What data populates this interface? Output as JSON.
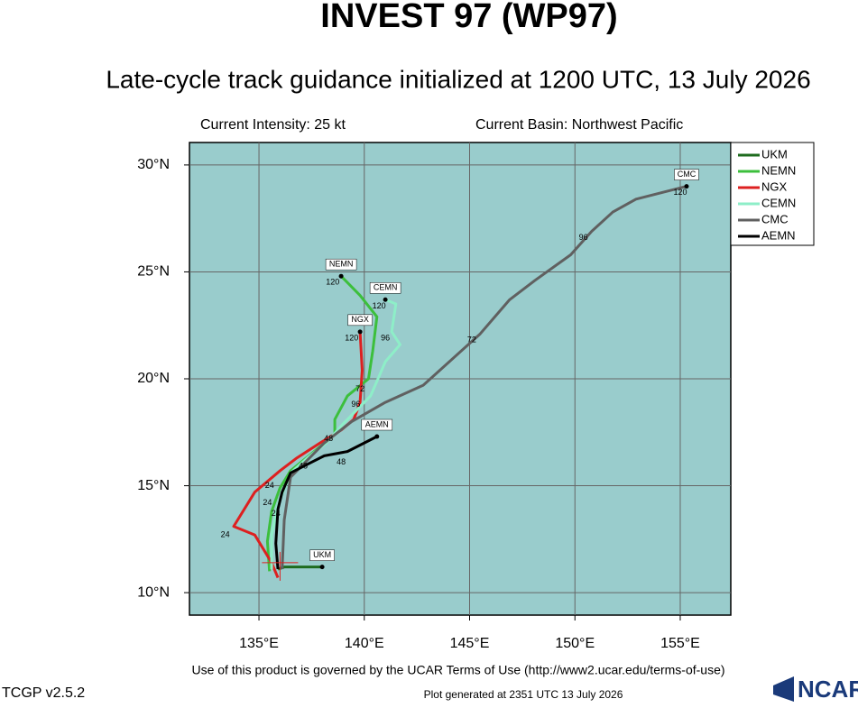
{
  "chart_data": {
    "type": "line",
    "title": "INVEST 97 (WP97)",
    "subtitle": "Late-cycle track guidance initialized at 1200 UTC, 13 July 2026",
    "intensity": "Current Intensity: 25 kt",
    "basin": "Current Basin: Northwest Pacific",
    "xlim": [
      131.7,
      157.4
    ],
    "ylim": [
      8.95,
      31.05
    ],
    "xticks": [
      {
        "value": 135,
        "label": "135°E"
      },
      {
        "value": 140,
        "label": "140°E"
      },
      {
        "value": 145,
        "label": "145°E"
      },
      {
        "value": 150,
        "label": "150°E"
      },
      {
        "value": 155,
        "label": "155°E"
      }
    ],
    "yticks": [
      {
        "value": 10,
        "label": "10°N"
      },
      {
        "value": 15,
        "label": "15°N"
      },
      {
        "value": 20,
        "label": "20°N"
      },
      {
        "value": 25,
        "label": "25°N"
      },
      {
        "value": 30,
        "label": "30°N"
      }
    ],
    "grid": true,
    "legend": "right",
    "initial_position": [
      136.0,
      11.4
    ],
    "series": [
      {
        "name": "UKM",
        "color": "#1e6b1e",
        "x": [
          135.9,
          136.2,
          138.0
        ],
        "y": [
          11.1,
          11.2,
          11.2
        ]
      },
      {
        "name": "NEMN",
        "color": "#3cbf3c",
        "x": [
          135.5,
          135.4,
          135.6,
          136.0,
          136.5,
          137.5,
          138.6,
          138.6,
          139.2,
          140.2,
          140.4,
          140.6,
          139.8,
          138.9
        ],
        "y": [
          11.0,
          12.4,
          13.8,
          14.9,
          15.7,
          16.5,
          17.4,
          18.1,
          19.2,
          20.0,
          21.3,
          22.9,
          23.9,
          24.8
        ]
      },
      {
        "name": "NGX",
        "color": "#dd2020",
        "x": [
          135.9,
          135.6,
          134.8,
          133.8,
          134.8,
          136.0,
          136.8,
          137.9,
          138.9,
          139.5,
          139.8,
          139.9,
          139.8
        ],
        "y": [
          10.7,
          11.4,
          12.7,
          13.1,
          14.7,
          15.7,
          16.3,
          17.0,
          17.6,
          18.1,
          18.9,
          20.4,
          22.2
        ]
      },
      {
        "name": "CEMN",
        "color": "#8eeec8",
        "x": [
          135.6,
          135.6,
          135.9,
          136.5,
          137.3,
          138.2,
          139.0,
          140.3,
          141.0,
          141.7,
          141.3,
          141.5,
          141.0
        ],
        "y": [
          11.1,
          12.7,
          14.1,
          15.6,
          16.3,
          17.0,
          17.9,
          19.2,
          20.8,
          21.6,
          22.2,
          23.5,
          23.7
        ]
      },
      {
        "name": "CMC",
        "color": "#606060",
        "x": [
          136.1,
          136.2,
          136.5,
          138.1,
          139.4,
          141.0,
          142.8,
          145.5,
          146.9,
          148.1,
          149.8,
          150.8,
          151.8,
          152.9,
          155.3
        ],
        "y": [
          11.1,
          13.4,
          15.4,
          17.0,
          18.0,
          18.9,
          19.7,
          22.1,
          23.7,
          24.6,
          25.8,
          26.9,
          27.8,
          28.4,
          29.0
        ]
      },
      {
        "name": "AEMN",
        "color": "#000000",
        "x": [
          135.9,
          135.8,
          135.9,
          136.1,
          136.5,
          137.3,
          138.1,
          139.2,
          139.8,
          140.6
        ],
        "y": [
          11.1,
          12.3,
          13.9,
          14.7,
          15.6,
          16.0,
          16.4,
          16.6,
          16.9,
          17.3
        ]
      }
    ],
    "annotations": [
      {
        "text": "72",
        "x": 145.1,
        "y": 21.8
      },
      {
        "text": "96",
        "x": 150.4,
        "y": 26.6
      },
      {
        "text": "120",
        "x": 155.0,
        "y": 28.7
      },
      {
        "text": "120",
        "x": 138.5,
        "y": 24.5
      },
      {
        "text": "120",
        "x": 140.7,
        "y": 23.4
      },
      {
        "text": "96",
        "x": 141.0,
        "y": 21.9
      },
      {
        "text": "120",
        "x": 139.4,
        "y": 21.9
      },
      {
        "text": "72",
        "x": 139.8,
        "y": 19.5
      },
      {
        "text": "96",
        "x": 139.6,
        "y": 18.8
      },
      {
        "text": "48",
        "x": 138.3,
        "y": 17.2
      },
      {
        "text": "48",
        "x": 138.9,
        "y": 16.1
      },
      {
        "text": "48",
        "x": 137.1,
        "y": 15.9
      },
      {
        "text": "24",
        "x": 133.4,
        "y": 12.7
      },
      {
        "text": "24",
        "x": 135.5,
        "y": 15.0
      },
      {
        "text": "24",
        "x": 135.4,
        "y": 14.2
      },
      {
        "text": "24",
        "x": 135.8,
        "y": 13.7
      }
    ]
  },
  "footer": {
    "terms": "Use of this product is governed by the UCAR Terms of Use (http://www2.ucar.edu/terms-of-use)",
    "version": "TCGP v2.5.2",
    "generated": "Plot generated at 2351 UTC  13 July 2026",
    "logo": "NCAR"
  }
}
